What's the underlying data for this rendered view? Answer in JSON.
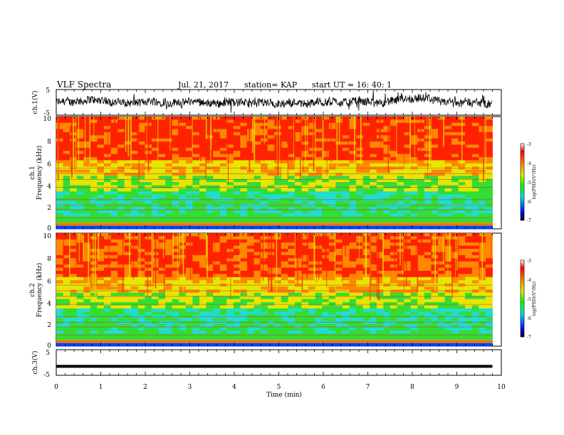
{
  "header": {
    "title": "VLF Spectra",
    "date": "Jul. 21, 2017",
    "station": "station= KAP",
    "start": "start UT =  16: 40: 1"
  },
  "chart_data": [
    {
      "type": "line",
      "name": "ch1-waveform",
      "ylabel": "ch.1(V)",
      "ylim": [
        -5,
        5
      ],
      "yticks": [
        5,
        -5
      ],
      "xlim": [
        0,
        10
      ],
      "x_end": 9.8
    },
    {
      "type": "heatmap",
      "name": "ch1-spectrogram",
      "ylabel_top": "ch.1",
      "ylabel": "Frequency (kHz)",
      "ylim": [
        0,
        10
      ],
      "yticks": [
        "0",
        "2",
        "4",
        "6",
        "8",
        "10"
      ],
      "colorbar": {
        "range": [
          -7,
          -3
        ],
        "ticks": [
          "-3",
          "-4",
          "-5",
          "-6",
          "-7"
        ],
        "label": "log(PSD)(V²/Hz)"
      }
    },
    {
      "type": "heatmap",
      "name": "ch2-spectrogram",
      "ylabel_top": "ch.2",
      "ylabel": "Frequency (kHz)",
      "ylim": [
        0,
        10
      ],
      "yticks": [
        "0",
        "2",
        "4",
        "6",
        "8",
        "10"
      ],
      "colorbar": {
        "range": [
          -7,
          -3
        ],
        "ticks": [
          "-3",
          "-4",
          "-5",
          "-6",
          "-7"
        ],
        "label": "log(PSD)(V²/Hz)"
      }
    },
    {
      "type": "line",
      "name": "ch3-waveform",
      "ylabel": "ch.3(V)",
      "ylim": [
        -5,
        5
      ],
      "yticks": [
        5,
        -5
      ],
      "level": -1.5
    }
  ],
  "xaxis": {
    "label": "Time (min)",
    "ticks": [
      "0",
      "1",
      "2",
      "3",
      "4",
      "5",
      "6",
      "7",
      "8",
      "9",
      "10"
    ],
    "range": [
      0,
      10
    ]
  },
  "colors": {
    "red": "#ff2200",
    "orange": "#ff8800",
    "yellow": "#e6e600",
    "green": "#33dd33",
    "cyan": "#22ddcc",
    "blue": "#0044ff"
  }
}
